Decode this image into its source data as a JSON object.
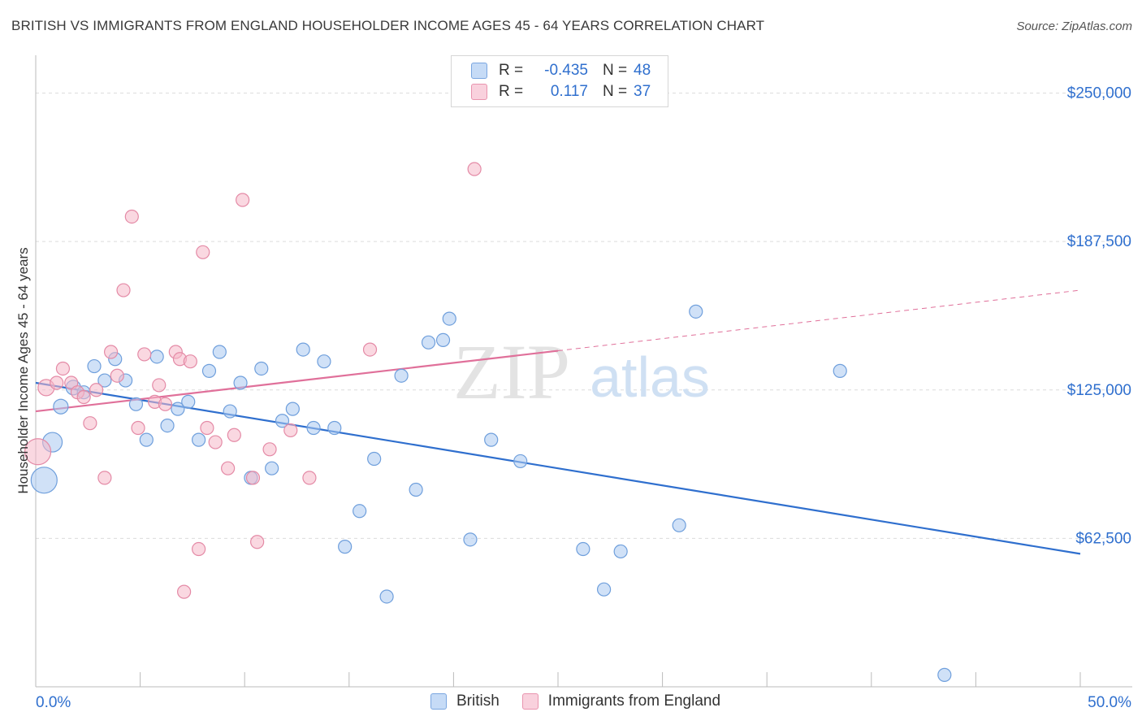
{
  "title": "BRITISH VS IMMIGRANTS FROM ENGLAND HOUSEHOLDER INCOME AGES 45 - 64 YEARS CORRELATION CHART",
  "source": "Source: ZipAtlas.com",
  "watermark": {
    "zip": "ZIP",
    "atlas": "atlas"
  },
  "legend": {
    "r_label": "R =",
    "n_label": "N =",
    "rows": [
      {
        "r": "-0.435",
        "n": "48",
        "color": "#a9c8f0"
      },
      {
        "r": "0.117",
        "n": "37",
        "color": "#f5b8c9"
      }
    ]
  },
  "bottom_legend": [
    "British",
    "Immigrants from England"
  ],
  "chart_data": {
    "type": "scatter",
    "title": "BRITISH VS IMMIGRANTS FROM ENGLAND HOUSEHOLDER INCOME AGES 45 - 64 YEARS CORRELATION CHART",
    "xlabel": "",
    "ylabel": "Householder Income Ages 45 - 64 years",
    "xlim": [
      0,
      50
    ],
    "ylim": [
      0,
      262500
    ],
    "x_tick_labels": [
      "0.0%",
      "50.0%"
    ],
    "y_ticks": [
      62500,
      125000,
      187500,
      250000
    ],
    "y_tick_labels": [
      "$62,500",
      "$125,000",
      "$187,500",
      "$250,000"
    ],
    "grid": true,
    "legend_position": "top-center",
    "series": [
      {
        "name": "British",
        "color": "#a9c8f0",
        "stroke": "#6f9fdc",
        "line_color": "#2f6fce",
        "trend": {
          "x": [
            0,
            50
          ],
          "y": [
            128000,
            56000
          ],
          "dashed_from": null
        },
        "points": [
          [
            0.4,
            87000,
            16
          ],
          [
            0.8,
            103000,
            12
          ],
          [
            1.2,
            118000,
            9
          ],
          [
            1.8,
            126000,
            9
          ],
          [
            2.3,
            124000,
            8
          ],
          [
            2.8,
            135000,
            8
          ],
          [
            3.3,
            129000,
            8
          ],
          [
            3.8,
            138000,
            8
          ],
          [
            4.3,
            129000,
            8
          ],
          [
            4.8,
            119000,
            8
          ],
          [
            5.3,
            104000,
            8
          ],
          [
            5.8,
            139000,
            8
          ],
          [
            6.3,
            110000,
            8
          ],
          [
            6.8,
            117000,
            8
          ],
          [
            7.3,
            120000,
            8
          ],
          [
            7.8,
            104000,
            8
          ],
          [
            8.3,
            133000,
            8
          ],
          [
            8.8,
            141000,
            8
          ],
          [
            9.3,
            116000,
            8
          ],
          [
            9.8,
            128000,
            8
          ],
          [
            10.3,
            88000,
            8
          ],
          [
            10.8,
            134000,
            8
          ],
          [
            11.3,
            92000,
            8
          ],
          [
            11.8,
            112000,
            8
          ],
          [
            12.3,
            117000,
            8
          ],
          [
            12.8,
            142000,
            8
          ],
          [
            13.3,
            109000,
            8
          ],
          [
            13.8,
            137000,
            8
          ],
          [
            14.3,
            109000,
            8
          ],
          [
            14.8,
            59000,
            8
          ],
          [
            15.5,
            74000,
            8
          ],
          [
            16.2,
            96000,
            8
          ],
          [
            16.8,
            38000,
            8
          ],
          [
            17.5,
            131000,
            8
          ],
          [
            18.2,
            83000,
            8
          ],
          [
            18.8,
            145000,
            8
          ],
          [
            19.5,
            146000,
            8
          ],
          [
            19.8,
            155000,
            8
          ],
          [
            20.8,
            62000,
            8
          ],
          [
            21.8,
            104000,
            8
          ],
          [
            23.2,
            95000,
            8
          ],
          [
            26.2,
            58000,
            8
          ],
          [
            27.2,
            41000,
            8
          ],
          [
            28.0,
            57000,
            8
          ],
          [
            30.8,
            68000,
            8
          ],
          [
            31.6,
            158000,
            8
          ],
          [
            38.5,
            133000,
            8
          ],
          [
            43.5,
            5000,
            8
          ]
        ]
      },
      {
        "name": "Immigrants from England",
        "color": "#f5b8c9",
        "stroke": "#e48aa6",
        "line_color": "#e0709a",
        "trend": {
          "x": [
            0,
            50
          ],
          "y": [
            116000,
            167000
          ],
          "dashed_from": 25
        },
        "points": [
          [
            0.1,
            99000,
            16
          ],
          [
            0.5,
            126000,
            10
          ],
          [
            1.0,
            128000,
            8
          ],
          [
            1.3,
            134000,
            8
          ],
          [
            1.7,
            128000,
            8
          ],
          [
            2.0,
            124000,
            8
          ],
          [
            2.3,
            122000,
            8
          ],
          [
            2.6,
            111000,
            8
          ],
          [
            2.9,
            125000,
            8
          ],
          [
            3.3,
            88000,
            8
          ],
          [
            3.6,
            141000,
            8
          ],
          [
            3.9,
            131000,
            8
          ],
          [
            4.2,
            167000,
            8
          ],
          [
            4.6,
            198000,
            8
          ],
          [
            4.9,
            109000,
            8
          ],
          [
            5.2,
            140000,
            8
          ],
          [
            5.7,
            120000,
            8
          ],
          [
            5.9,
            127000,
            8
          ],
          [
            6.2,
            119000,
            8
          ],
          [
            6.7,
            141000,
            8
          ],
          [
            6.9,
            138000,
            8
          ],
          [
            7.1,
            40000,
            8
          ],
          [
            7.4,
            137000,
            8
          ],
          [
            7.8,
            58000,
            8
          ],
          [
            8.0,
            183000,
            8
          ],
          [
            8.2,
            109000,
            8
          ],
          [
            8.6,
            103000,
            8
          ],
          [
            9.2,
            92000,
            8
          ],
          [
            9.5,
            106000,
            8
          ],
          [
            9.9,
            205000,
            8
          ],
          [
            10.4,
            88000,
            8
          ],
          [
            10.6,
            61000,
            8
          ],
          [
            11.2,
            100000,
            8
          ],
          [
            12.2,
            108000,
            8
          ],
          [
            13.1,
            88000,
            8
          ],
          [
            16.0,
            142000,
            8
          ],
          [
            21.0,
            218000,
            8
          ]
        ]
      }
    ]
  }
}
